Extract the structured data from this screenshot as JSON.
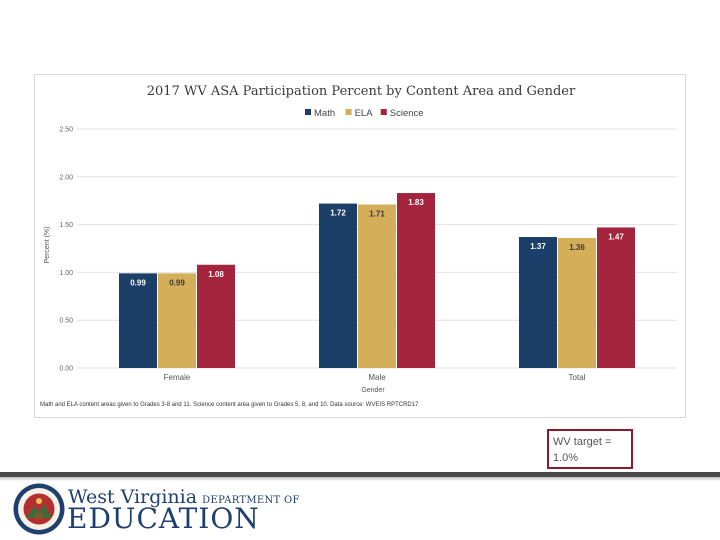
{
  "chart_data": {
    "type": "bar",
    "title": "2017 WV ASA Participation Percent by Content Area and Gender",
    "xlabel": "Gender",
    "ylabel": "Percent (%)",
    "ylim": [
      0,
      2.5
    ],
    "yticks": [
      "0.00",
      "0.50",
      "1.00",
      "1.50",
      "2.00",
      "2.50"
    ],
    "categories": [
      "Female",
      "Male",
      "Total"
    ],
    "legend_position": "top-center",
    "grid": true,
    "series": [
      {
        "name": "Math",
        "color": "#1c3f6a",
        "label_color": "#ffffff",
        "values": [
          0.99,
          1.72,
          1.37
        ],
        "labels": [
          "0.99",
          "1.72",
          "1.37"
        ]
      },
      {
        "name": "ELA",
        "color": "#d4ae58",
        "label_color": "#3a3a3a",
        "values": [
          0.99,
          1.71,
          1.36
        ],
        "labels": [
          "0.99",
          "1.71",
          "1.36"
        ]
      },
      {
        "name": "Science",
        "color": "#a5243d",
        "label_color": "#ffffff",
        "values": [
          1.08,
          1.83,
          1.47
        ],
        "labels": [
          "1.08",
          "1.83",
          "1.47"
        ]
      }
    ]
  },
  "footnote": "Math and ELA content areas given to Grades 3-8 and 11. Science content area given to Grades 5, 8, and 10. Data source: WVEIS RPTCRD17",
  "target_note": "WV target = 1.0%",
  "logo": {
    "state": "West Virginia",
    "department": "DEPARTMENT OF",
    "education": "EDUCATION",
    "seal_text": "STATE OF WEST VIRGINIA"
  }
}
